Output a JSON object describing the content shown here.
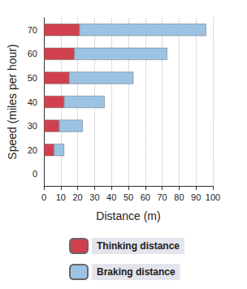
{
  "chart_data": {
    "type": "bar",
    "orientation": "horizontal",
    "stacked": true,
    "categories": [
      "0",
      "20",
      "30",
      "40",
      "50",
      "60",
      "70"
    ],
    "series": [
      {
        "name": "Thinking distance",
        "color": "#d1404e",
        "values": [
          null,
          6,
          9,
          12,
          15,
          18,
          21
        ]
      },
      {
        "name": "Braking distance",
        "color": "#9cc3e4",
        "values": [
          null,
          6,
          14,
          24,
          38,
          55,
          75
        ]
      }
    ],
    "xlabel": "Distance (m)",
    "ylabel": "Speed (miles per hour)",
    "xlim": [
      0,
      100
    ],
    "xticks": [
      0,
      10,
      20,
      30,
      40,
      50,
      60,
      70,
      80,
      90,
      100
    ],
    "grid": true,
    "legend": "bottom"
  }
}
